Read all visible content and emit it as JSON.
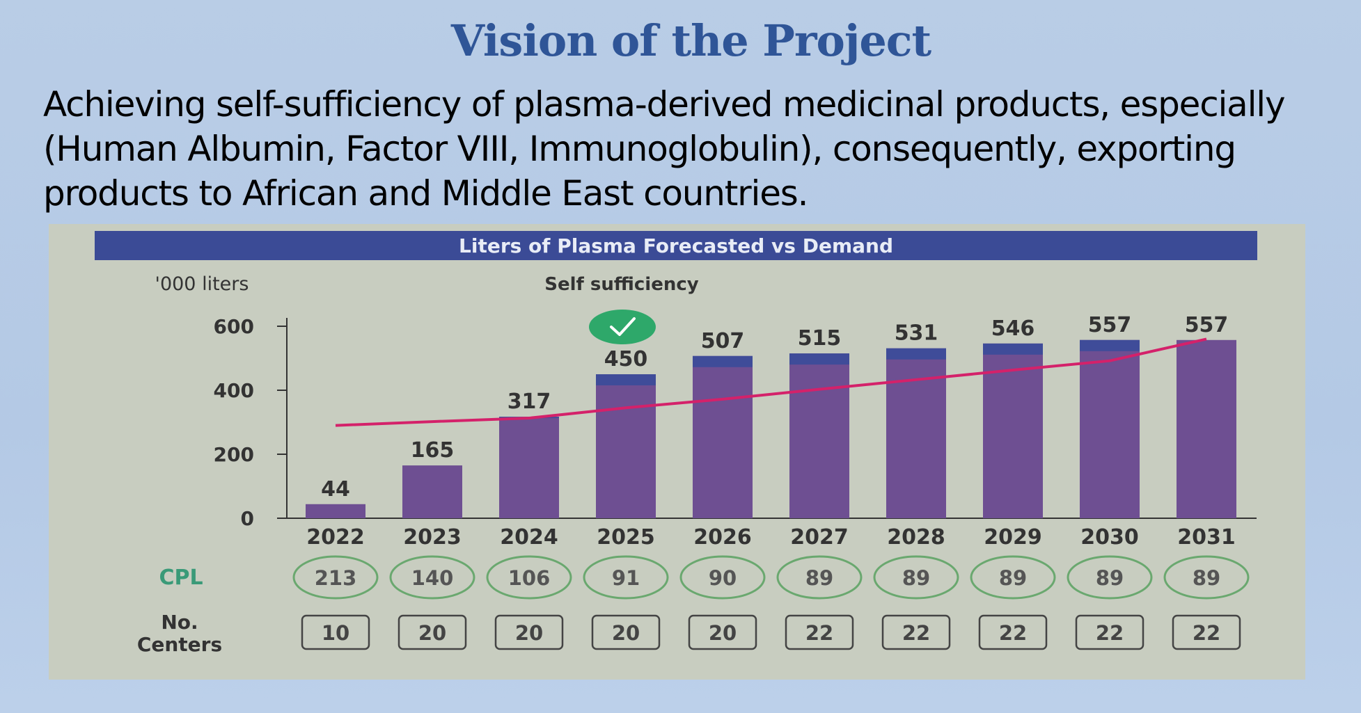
{
  "slide": {
    "title": "Vision of the Project",
    "body": "Achieving self-sufficiency of plasma-derived medicinal products, especially (Human Albumin, Factor VIII, Immunoglobulin), consequently, exporting products to African and Middle East countries."
  },
  "colors": {
    "title": "#2f5597",
    "banner": "#3b4b96",
    "bar": "#6e4f92",
    "bar_top_demand": "#3f4c99",
    "demand_line": "#d4216a",
    "check": "#2ea86a",
    "cpl_label": "#3a9a78"
  },
  "chart_data": {
    "type": "bar",
    "title": "Liters of Plasma Forecasted vs Demand",
    "unit_label": "'000 liters",
    "annotation": "Self sufficiency",
    "annotation_year": "2025",
    "annotation_icon": "check-circle-icon",
    "categories": [
      "2022",
      "2023",
      "2024",
      "2025",
      "2026",
      "2027",
      "2028",
      "2029",
      "2030",
      "2031"
    ],
    "series": [
      {
        "type": "bar",
        "values": [
          44,
          165,
          317,
          450,
          507,
          515,
          531,
          546,
          557,
          557
        ]
      },
      {
        "type": "line",
        "values": [
          290,
          302,
          313,
          345,
          372,
          403,
          433,
          463,
          492,
          560
        ]
      }
    ],
    "ylim": [
      0,
      600
    ],
    "yticks": [
      0,
      200,
      400,
      600
    ],
    "grid": false,
    "rows": [
      {
        "label": "CPL",
        "values": [
          "213",
          "140",
          "106",
          "91",
          "90",
          "89",
          "89",
          "89",
          "89",
          "89"
        ]
      },
      {
        "label": "No. Centers",
        "label_lines": [
          "No.",
          "Centers"
        ],
        "values": [
          "10",
          "20",
          "20",
          "20",
          "20",
          "22",
          "22",
          "22",
          "22",
          "22"
        ]
      }
    ]
  }
}
